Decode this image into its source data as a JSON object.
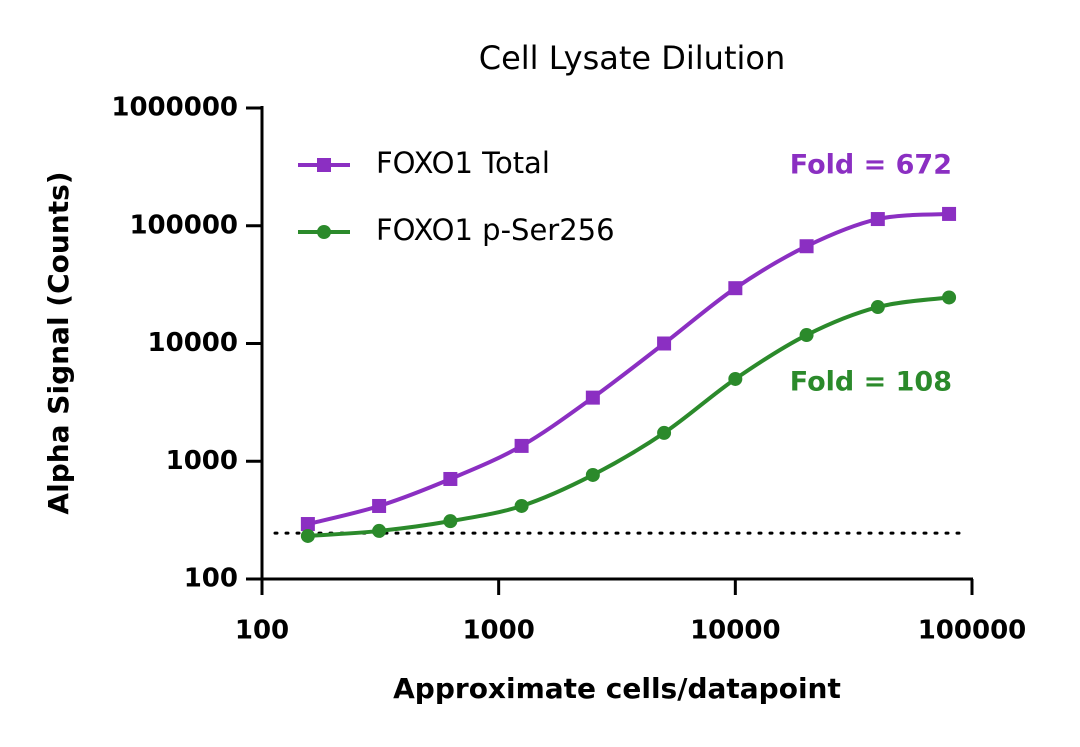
{
  "chart_data": {
    "type": "scatter",
    "title": "Cell Lysate Dilution",
    "x_label": "Approximate cells/datapoint",
    "y_label": "Alpha Signal (Counts)",
    "x": [
      156.25,
      312.5,
      625,
      1250,
      2500,
      5000,
      10000,
      20000,
      40000,
      80000
    ],
    "series": [
      {
        "name": "FOXO1 Total",
        "color": "#8b2fc2",
        "marker": "square",
        "values": [
          293,
          417,
          707,
          1350,
          3470,
          10000,
          29500,
          67000,
          114000,
          126000
        ]
      },
      {
        "name": "FOXO1 p-Ser256",
        "color": "#2b8a2b",
        "marker": "circle",
        "values": [
          232,
          256,
          310,
          417,
          765,
          1740,
          5000,
          11800,
          20400,
          24600
        ]
      }
    ],
    "annotations": [
      "Fold = 672",
      "Fold = 108"
    ],
    "reference_line": 245,
    "xscale": "log",
    "yscale": "log",
    "xlim": [
      100,
      100000
    ],
    "xticks": [
      100,
      1000,
      10000,
      100000
    ],
    "ylim": [
      100,
      1000000
    ],
    "yticks": [
      100,
      1000,
      10000,
      100000,
      1000000
    ],
    "legend": "upper left"
  }
}
